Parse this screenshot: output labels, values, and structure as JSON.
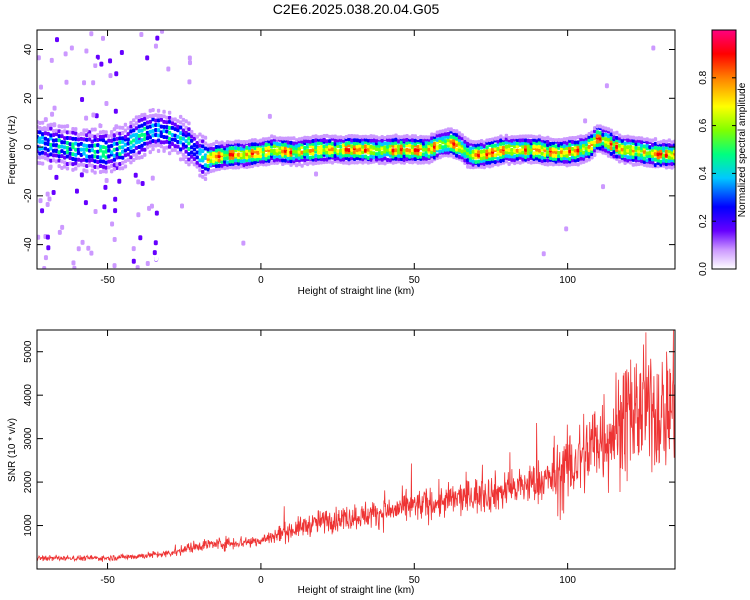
{
  "title": "C2E6.2025.038.20.04.G05",
  "chart_data": [
    {
      "type": "heatmap",
      "xlabel": "Height of straight line (km)",
      "ylabel": "Frequency (Hz)",
      "xlim": [
        -73,
        135
      ],
      "ylim": [
        -50,
        48
      ],
      "xticks": [
        -50,
        0,
        50,
        100
      ],
      "yticks": [
        -40,
        -20,
        0,
        20,
        40
      ],
      "xtick_labels": [
        "-50",
        "0",
        "50",
        "100"
      ],
      "ytick_labels": [
        "-40",
        "-20",
        "0",
        "20",
        "40"
      ],
      "colorbar": {
        "label": "Normalized spectral amplitude",
        "range": [
          0,
          1
        ],
        "ticks": [
          "0.0",
          "0.2",
          "0.4",
          "0.6",
          "0.8"
        ],
        "colors": [
          "#ffffff",
          "#cc99ff",
          "#6600ff",
          "#0000ff",
          "#00c8ff",
          "#00ff80",
          "#80ff00",
          "#ffff00",
          "#ff8000",
          "#ff0000",
          "#ff0080"
        ]
      },
      "ridge": {
        "x": [
          -73,
          -60,
          -50,
          -45,
          -40,
          -35,
          -30,
          -25,
          -20,
          -18,
          -15,
          -10,
          -5,
          0,
          5,
          10,
          20,
          30,
          40,
          50,
          55,
          58,
          62,
          65,
          68,
          72,
          76,
          80,
          85,
          90,
          95,
          100,
          105,
          108,
          110,
          113,
          118,
          125,
          130,
          135
        ],
        "y": [
          2,
          -1,
          -2,
          0,
          4,
          7,
          6,
          3,
          -3,
          -5,
          -4,
          -3,
          -3,
          -2,
          -1,
          -2,
          -1,
          -1,
          -1,
          -1,
          -1,
          1,
          2,
          0,
          -3,
          -3,
          -2,
          -1,
          -1,
          -1,
          -2,
          -2,
          -1,
          1,
          4,
          2,
          -1,
          -2,
          -3,
          -3
        ]
      }
    },
    {
      "type": "line",
      "xlabel": "Height of straight line (km)",
      "ylabel": "SNR (10 * v/v)",
      "xlim": [
        -73,
        135
      ],
      "ylim": [
        0,
        5500
      ],
      "xticks": [
        -50,
        0,
        50,
        100
      ],
      "yticks": [
        1000,
        2000,
        3000,
        4000,
        5000
      ],
      "xtick_labels": [
        "-50",
        "0",
        "50",
        "100"
      ],
      "ytick_labels": [
        "1000",
        "2000",
        "3000",
        "4000",
        "5000"
      ],
      "color": "#ee3333",
      "trend": {
        "x": [
          -73,
          -50,
          -30,
          -20,
          -10,
          0,
          10,
          20,
          30,
          40,
          50,
          60,
          70,
          80,
          90,
          95,
          100,
          105,
          110,
          115,
          120,
          125,
          130,
          135
        ],
        "y": [
          250,
          250,
          350,
          550,
          600,
          650,
          900,
          1100,
          1200,
          1300,
          1450,
          1550,
          1700,
          1800,
          2000,
          2100,
          2300,
          2600,
          3000,
          3200,
          3500,
          3700,
          3600,
          3800
        ]
      }
    }
  ]
}
